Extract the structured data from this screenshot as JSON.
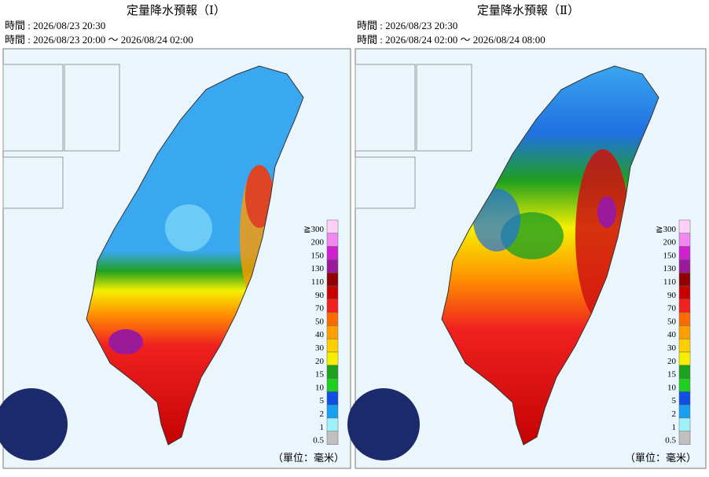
{
  "panels": [
    {
      "title": "定量降水預報（Ⅰ）",
      "issued": "時間 : 2026/08/23 20:30",
      "valid": "時間 : 2026/08/23 20:00 ～ 2026/08/24 02:00"
    },
    {
      "title": "定量降水預報（Ⅱ）",
      "issued": "時間 : 2026/08/23 20:30",
      "valid": "時間 : 2026/08/24 02:00 ～ 2026/08/24 08:00"
    }
  ],
  "legend": [
    {
      "label": "≧300",
      "color": "#fdd1f5"
    },
    {
      "label": "200",
      "color": "#f088f0"
    },
    {
      "label": "150",
      "color": "#d020d0"
    },
    {
      "label": "130",
      "color": "#9a1a9a"
    },
    {
      "label": "110",
      "color": "#900000"
    },
    {
      "label": "90",
      "color": "#c80000"
    },
    {
      "label": "70",
      "color": "#f41f1f"
    },
    {
      "label": "50",
      "color": "#ff6a00"
    },
    {
      "label": "40",
      "color": "#ffa000"
    },
    {
      "label": "30",
      "color": "#ffd000"
    },
    {
      "label": "20",
      "color": "#f6f000"
    },
    {
      "label": "15",
      "color": "#20a020"
    },
    {
      "label": "10",
      "color": "#20d020"
    },
    {
      "label": "5",
      "color": "#1050e0"
    },
    {
      "label": "2",
      "color": "#1aa0f0"
    },
    {
      "label": "1",
      "color": "#a0f0fa"
    },
    {
      "label": "0.5",
      "color": "#c0c0c0"
    }
  ],
  "unit": "（單位：毫米）"
}
